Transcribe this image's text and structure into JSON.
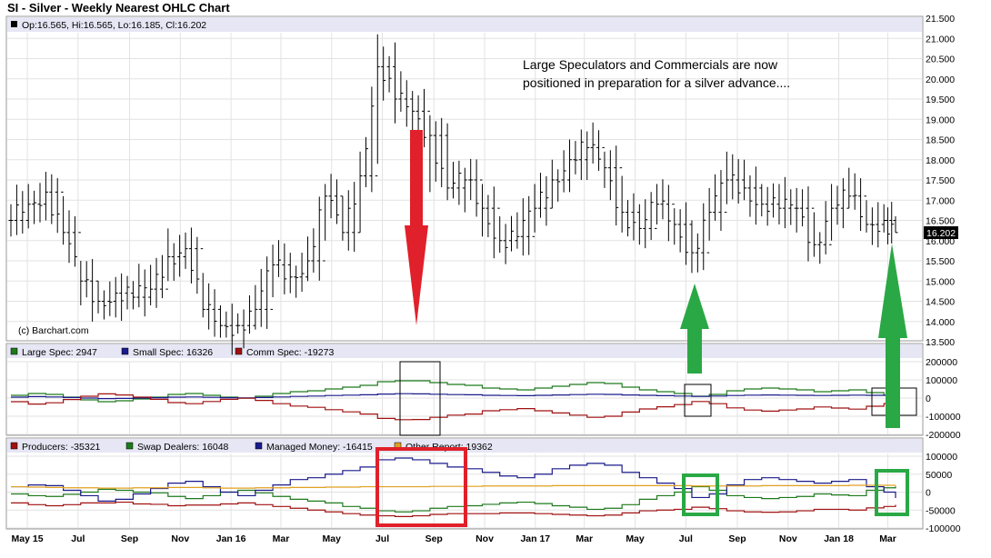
{
  "title": "SI - Silver - Weekly Nearest OHLC Chart",
  "colors": {
    "bars": "#000000",
    "large_spec": "#1d7a1d",
    "small_spec": "#1a1a8c",
    "comm_spec": "#a01010",
    "producers": "#a01010",
    "swap_dealers": "#1d7a1d",
    "managed_money": "#1a1a8c",
    "other_report": "#e0a020",
    "info_bar": "#e6e6f5",
    "last_box": "#000000",
    "up_arrow": "#2aa845",
    "down_arrow": "#e0202a",
    "red_box": "#e0202a",
    "green_box": "#2aa845"
  },
  "chart_data": [
    {
      "type": "ohlc",
      "panel": "price",
      "title": "SI - Silver - Weekly Nearest OHLC Chart",
      "legend": "Op:16.565, Hi:16.565, Lo:16.185, Cl:16.202",
      "source_label": "(c) Barchart.com",
      "last_value_label": "16.202",
      "annotation": [
        "Large Speculators and Commercials are now",
        "positioned in preparation for a silver advance...."
      ],
      "y_ticks": [
        "21.500",
        "21.000",
        "20.500",
        "20.000",
        "19.500",
        "19.000",
        "18.500",
        "18.000",
        "17.500",
        "17.000",
        "16.500",
        "16.000",
        "15.500",
        "15.000",
        "14.500",
        "14.000",
        "13.500"
      ],
      "ylim": [
        13.5,
        21.5
      ],
      "x_ticks": [
        "May 15",
        "Jul",
        "Sep",
        "Nov",
        "Jan 16",
        "Mar",
        "May",
        "Jul",
        "Sep",
        "Nov",
        "Jan 17",
        "Mar",
        "May",
        "Jul",
        "Sep",
        "Nov",
        "Jan 18",
        "Mar"
      ],
      "x": [
        "2015-04-20",
        "2015-05-11",
        "2015-06-01",
        "2015-06-22",
        "2015-07-13",
        "2015-08-03",
        "2015-08-24",
        "2015-09-14",
        "2015-10-05",
        "2015-10-26",
        "2015-11-16",
        "2015-12-07",
        "2015-12-28",
        "2016-01-18",
        "2016-02-08",
        "2016-02-29",
        "2016-03-21",
        "2016-04-11",
        "2016-05-02",
        "2016-05-23",
        "2016-06-13",
        "2016-07-04",
        "2016-07-25",
        "2016-08-15",
        "2016-09-05",
        "2016-09-26",
        "2016-10-17",
        "2016-11-07",
        "2016-11-28",
        "2016-12-19",
        "2017-01-09",
        "2017-01-30",
        "2017-02-20",
        "2017-03-13",
        "2017-04-03",
        "2017-04-24",
        "2017-05-15",
        "2017-06-05",
        "2017-06-26",
        "2017-07-17",
        "2017-08-07",
        "2017-08-28",
        "2017-09-18",
        "2017-10-09",
        "2017-10-30",
        "2017-11-20",
        "2017-12-11",
        "2018-01-01",
        "2018-01-22",
        "2018-02-12",
        "2018-03-05",
        "2018-03-19"
      ],
      "close": [
        16.5,
        16.9,
        17.2,
        16.2,
        15.0,
        14.5,
        14.7,
        14.6,
        14.8,
        15.6,
        15.8,
        14.3,
        13.9,
        13.9,
        14.3,
        15.4,
        15.1,
        15.5,
        17.1,
        16.2,
        17.6,
        20.3,
        19.5,
        19.2,
        18.6,
        17.3,
        17.5,
        16.8,
        16.0,
        16.1,
        16.8,
        17.5,
        18.0,
        18.3,
        17.8,
        16.7,
        16.3,
        16.9,
        16.4,
        15.7,
        16.7,
        17.5,
        17.3,
        16.9,
        16.8,
        16.8,
        15.9,
        16.8,
        17.1,
        16.4,
        16.5,
        16.2
      ],
      "high": [
        16.9,
        17.4,
        17.7,
        17.1,
        15.5,
        15.0,
        15.1,
        15.0,
        15.4,
        16.3,
        16.2,
        15.2,
        14.4,
        14.2,
        14.9,
        15.9,
        15.7,
        16.1,
        17.4,
        17.1,
        18.2,
        21.1,
        20.9,
        19.7,
        19.1,
        18.9,
        17.8,
        17.4,
        16.6,
        16.7,
        17.4,
        18.0,
        18.5,
        18.7,
        18.2,
        17.6,
        16.9,
        17.4,
        16.8,
        16.5,
        17.3,
        18.2,
        18.0,
        17.4,
        17.4,
        17.3,
        16.7,
        17.4,
        17.8,
        17.0,
        16.9,
        16.6
      ],
      "low": [
        16.1,
        16.3,
        16.5,
        15.9,
        14.4,
        14.2,
        14.1,
        14.3,
        14.4,
        15.0,
        15.3,
        14.1,
        13.6,
        13.7,
        13.8,
        14.6,
        14.7,
        15.0,
        16.0,
        16.0,
        16.2,
        17.9,
        18.9,
        18.5,
        17.2,
        17.0,
        16.7,
        16.1,
        15.7,
        15.8,
        16.2,
        16.8,
        17.2,
        17.5,
        17.3,
        16.2,
        15.9,
        16.4,
        15.9,
        15.2,
        16.0,
        16.9,
        17.0,
        16.6,
        16.4,
        16.2,
        15.6,
        16.0,
        16.8,
        16.2,
        16.2,
        16.2
      ]
    },
    {
      "type": "line",
      "panel": "cot-legacy",
      "y_ticks": [
        "200000",
        "100000",
        "0",
        "-100000",
        "-200000"
      ],
      "ylim": [
        -200000,
        200000
      ],
      "series": [
        {
          "name": "Large Spec: 2947",
          "color_key": "large_spec",
          "values": [
            15000,
            25000,
            20000,
            5000,
            -10000,
            -20000,
            -15000,
            -5000,
            5000,
            20000,
            25000,
            15000,
            5000,
            0,
            10000,
            25000,
            35000,
            40000,
            50000,
            60000,
            70000,
            90000,
            95000,
            95000,
            85000,
            75000,
            70000,
            55000,
            50000,
            45000,
            55000,
            65000,
            75000,
            85000,
            80000,
            60000,
            45000,
            35000,
            25000,
            10000,
            20000,
            40000,
            50000,
            55000,
            50000,
            45000,
            35000,
            40000,
            45000,
            30000,
            15000,
            2947
          ]
        },
        {
          "name": "Small Spec: 16326",
          "color_key": "small_spec",
          "values": [
            5000,
            8000,
            6000,
            3000,
            0,
            -3000,
            -2000,
            0,
            2000,
            5000,
            6000,
            4000,
            2000,
            1000,
            3000,
            6000,
            9000,
            11000,
            14000,
            16000,
            18000,
            22000,
            24000,
            23000,
            21000,
            19000,
            18000,
            15000,
            14000,
            13000,
            15000,
            17000,
            19000,
            21000,
            20000,
            17000,
            15000,
            13000,
            11000,
            9000,
            11000,
            14000,
            16000,
            17000,
            16000,
            15000,
            14000,
            15000,
            16000,
            15000,
            15500,
            16326
          ]
        },
        {
          "name": "Comm Spec: -19273",
          "color_key": "comm_spec",
          "values": [
            -20000,
            -33000,
            -26000,
            -8000,
            10000,
            23000,
            17000,
            5000,
            -7000,
            -25000,
            -31000,
            -19000,
            -7000,
            -1000,
            -13000,
            -31000,
            -44000,
            -51000,
            -64000,
            -76000,
            -88000,
            -112000,
            -119000,
            -118000,
            -106000,
            -94000,
            -88000,
            -70000,
            -64000,
            -58000,
            -70000,
            -82000,
            -94000,
            -106000,
            -100000,
            -77000,
            -60000,
            -48000,
            -36000,
            -19000,
            -31000,
            -54000,
            -66000,
            -72000,
            -66000,
            -60000,
            -49000,
            -55000,
            -61000,
            -45000,
            -30500,
            -19273
          ]
        }
      ]
    },
    {
      "type": "line",
      "panel": "cot-disaggregated",
      "y_ticks": [
        "100000",
        "50000",
        "0",
        "-50000",
        "-100000"
      ],
      "ylim": [
        -100000,
        100000
      ],
      "series": [
        {
          "name": "Producers: -35321",
          "color_key": "producers",
          "values": [
            -30000,
            -35000,
            -38000,
            -35000,
            -30000,
            -30000,
            -28000,
            -33000,
            -34000,
            -38000,
            -36000,
            -36000,
            -33000,
            -30000,
            -35000,
            -40000,
            -45000,
            -50000,
            -55000,
            -60000,
            -64000,
            -66000,
            -68000,
            -66000,
            -62000,
            -60000,
            -60000,
            -60000,
            -58000,
            -58000,
            -60000,
            -62000,
            -64000,
            -66000,
            -64000,
            -58000,
            -52000,
            -50000,
            -48000,
            -42000,
            -46000,
            -52000,
            -55000,
            -56000,
            -55000,
            -52000,
            -48000,
            -48000,
            -50000,
            -44000,
            -40000,
            -35321
          ]
        },
        {
          "name": "Swap Dealers: 16048",
          "color_key": "swap_dealers",
          "values": [
            -5000,
            -10000,
            -12000,
            -6000,
            0,
            8000,
            5000,
            0,
            -2000,
            -12000,
            -18000,
            -10000,
            0,
            5000,
            -2000,
            -12000,
            -20000,
            -25000,
            -30000,
            -40000,
            -45000,
            -52000,
            -55000,
            -52000,
            -45000,
            -40000,
            -38000,
            -34000,
            -30000,
            -28000,
            -32000,
            -38000,
            -42000,
            -48000,
            -45000,
            -35000,
            -20000,
            -10000,
            0,
            15000,
            5000,
            -10000,
            -15000,
            -18000,
            -15000,
            -12000,
            -5000,
            -8000,
            -10000,
            5000,
            12000,
            16048
          ]
        },
        {
          "name": "Managed Money: -16415",
          "color_key": "managed_money",
          "values": [
            15000,
            20000,
            18000,
            5000,
            -10000,
            -25000,
            -20000,
            -5000,
            10000,
            25000,
            30000,
            15000,
            0,
            -10000,
            5000,
            20000,
            35000,
            40000,
            50000,
            60000,
            70000,
            90000,
            95000,
            90000,
            80000,
            70000,
            65000,
            55000,
            45000,
            40000,
            50000,
            65000,
            75000,
            80000,
            75000,
            55000,
            40000,
            25000,
            10000,
            -15000,
            -5000,
            20000,
            35000,
            40000,
            35000,
            30000,
            25000,
            30000,
            35000,
            15000,
            0,
            -16415
          ]
        },
        {
          "name": "Other Report: 19362",
          "color_key": "other_report",
          "values": [
            15000,
            14000,
            13000,
            12000,
            12000,
            11000,
            11000,
            12000,
            12000,
            13000,
            13000,
            12000,
            11000,
            11000,
            12000,
            12000,
            13000,
            13000,
            14000,
            14000,
            15000,
            15000,
            15000,
            15000,
            16000,
            16000,
            16000,
            17000,
            17000,
            17000,
            17000,
            18000,
            18000,
            18000,
            18000,
            18000,
            18000,
            18000,
            18000,
            17000,
            17000,
            17000,
            17000,
            18000,
            18000,
            18000,
            18000,
            18000,
            19000,
            19000,
            19000,
            19362
          ]
        }
      ]
    }
  ]
}
